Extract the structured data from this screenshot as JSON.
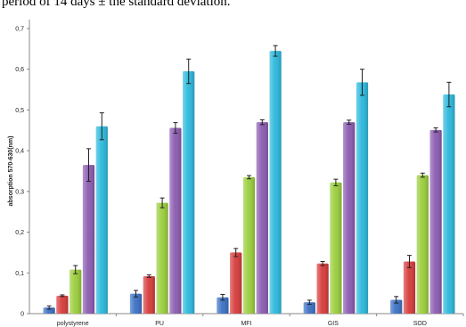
{
  "caption": "period of 14 days ± the standard deviation.",
  "chart_data": {
    "type": "bar",
    "title": "",
    "xlabel": "",
    "ylabel": "absorption 570-630(nm)",
    "ylim": [
      0,
      0.7
    ],
    "yticks": [
      "0",
      "0,1",
      "0,2",
      "0,3",
      "0,4",
      "0,5",
      "0,6",
      "0,7"
    ],
    "grid": false,
    "legend": "none",
    "categories": [
      "polystyrene",
      "PU",
      "MFI",
      "GIS",
      "SOD"
    ],
    "series": [
      {
        "color": "#3a6fc4",
        "values": [
          0.015,
          0.049,
          0.04,
          0.028,
          0.034
        ],
        "errors": [
          0.004,
          0.008,
          0.007,
          0.005,
          0.008
        ]
      },
      {
        "color": "#d63a3a",
        "values": [
          0.044,
          0.092,
          0.15,
          0.123,
          0.128
        ],
        "errors": [
          0.002,
          0.003,
          0.01,
          0.005,
          0.015
        ]
      },
      {
        "color": "#9acd3a",
        "values": [
          0.108,
          0.272,
          0.335,
          0.322,
          0.34
        ],
        "errors": [
          0.01,
          0.012,
          0.004,
          0.008,
          0.005
        ]
      },
      {
        "color": "#8a5ab0",
        "values": [
          0.365,
          0.456,
          0.47,
          0.47,
          0.451
        ],
        "errors": [
          0.04,
          0.013,
          0.006,
          0.005,
          0.005
        ]
      },
      {
        "color": "#2ab8dc",
        "values": [
          0.46,
          0.595,
          0.645,
          0.568,
          0.538
        ],
        "errors": [
          0.033,
          0.03,
          0.013,
          0.032,
          0.03
        ]
      }
    ]
  }
}
